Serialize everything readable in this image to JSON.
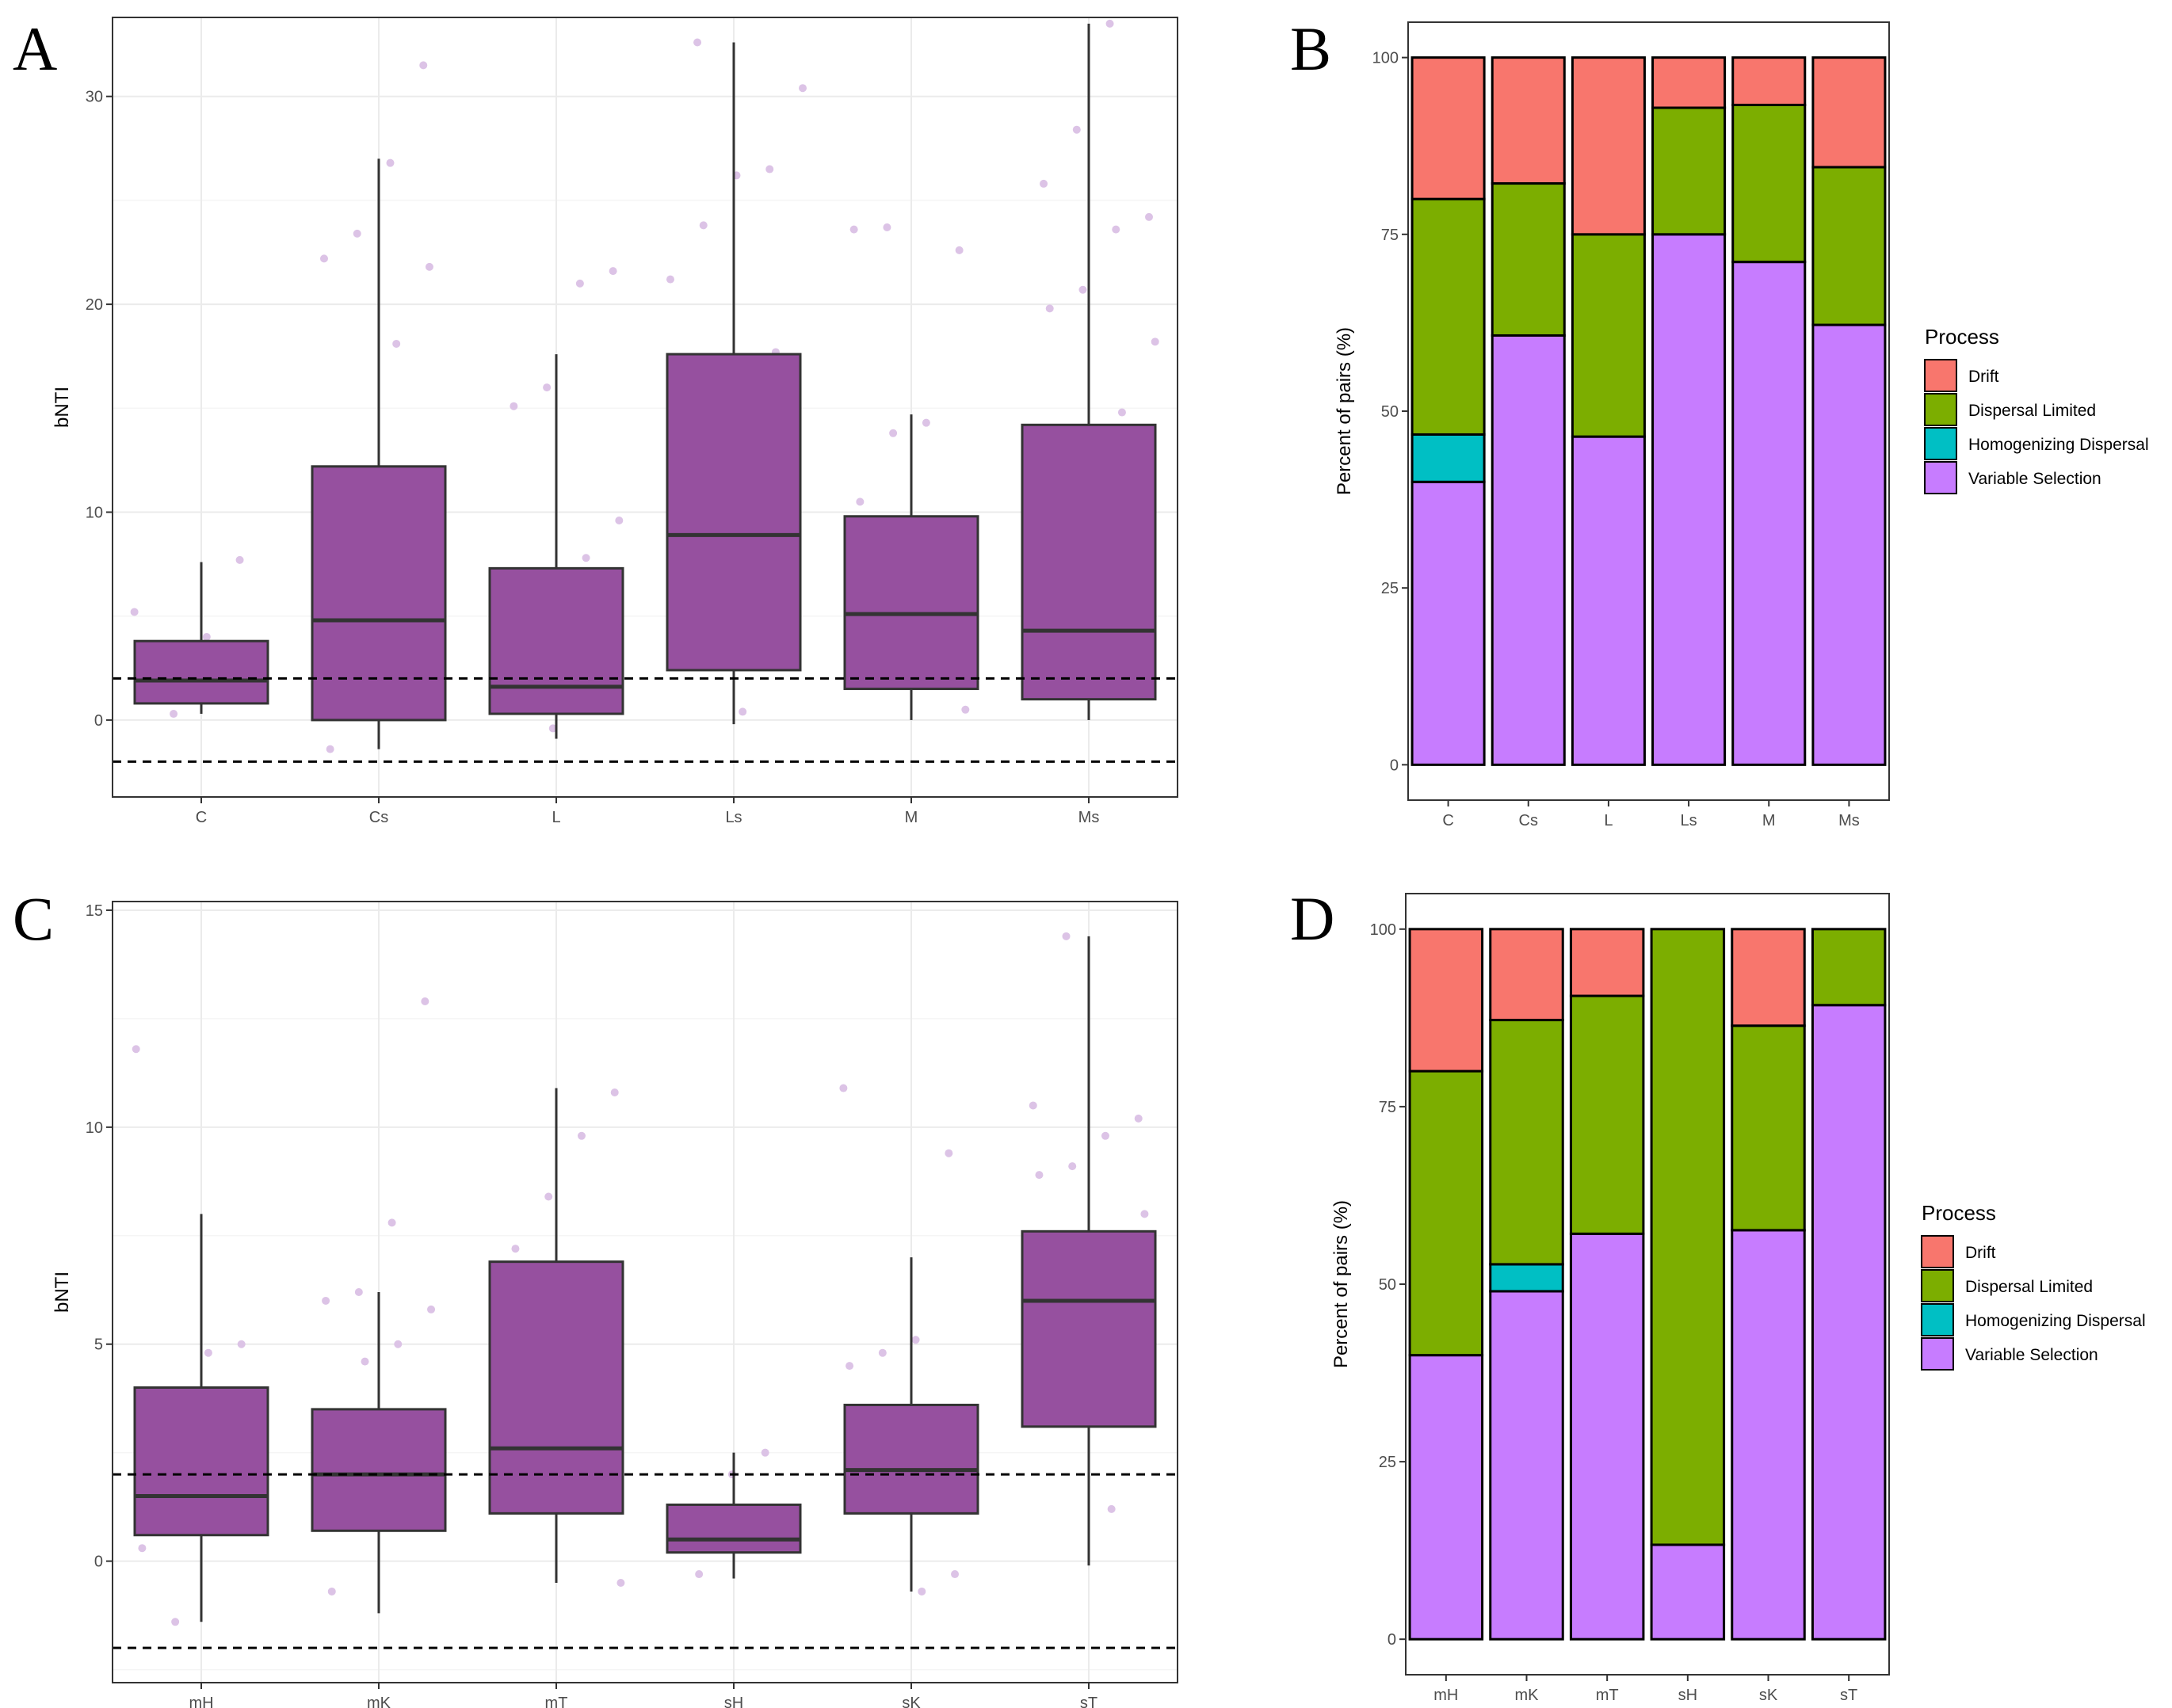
{
  "chart_data": [
    {
      "panel": "A",
      "type": "boxplot",
      "ylabel": "bNTI",
      "xlabel": "",
      "ylim": [
        -3.7,
        33.8
      ],
      "yticks": [
        0,
        10,
        20,
        30
      ],
      "reference_lines": [
        2,
        -2
      ],
      "categories": [
        "C",
        "Cs",
        "L",
        "Ls",
        "M",
        "Ms"
      ],
      "boxes": [
        {
          "group": "C",
          "whisker_low": 0.3,
          "q1": 0.8,
          "median": 1.9,
          "q3": 3.8,
          "whisker_high": 7.6
        },
        {
          "group": "Cs",
          "whisker_low": -1.4,
          "q1": 0.0,
          "median": 4.8,
          "q3": 12.2,
          "whisker_high": 27.0
        },
        {
          "group": "L",
          "whisker_low": -0.9,
          "q1": 0.3,
          "median": 1.6,
          "q3": 7.3,
          "whisker_high": 17.6
        },
        {
          "group": "Ls",
          "whisker_low": -0.2,
          "q1": 2.4,
          "median": 8.9,
          "q3": 17.6,
          "whisker_high": 32.6
        },
        {
          "group": "M",
          "whisker_low": 0.0,
          "q1": 1.5,
          "median": 5.1,
          "q3": 9.8,
          "whisker_high": 14.7
        },
        {
          "group": "Ms",
          "whisker_low": 0.0,
          "q1": 1.0,
          "median": 4.3,
          "q3": 14.2,
          "whisker_high": 33.5
        }
      ],
      "jitter_points": [
        {
          "group": "C",
          "y": 5.2
        },
        {
          "group": "C",
          "y": 7.7
        },
        {
          "group": "C",
          "y": 4.0
        },
        {
          "group": "C",
          "y": 0.3
        },
        {
          "group": "C",
          "y": 2.1
        },
        {
          "group": "Cs",
          "y": 31.5
        },
        {
          "group": "Cs",
          "y": 26.8
        },
        {
          "group": "Cs",
          "y": 23.4
        },
        {
          "group": "Cs",
          "y": 22.2
        },
        {
          "group": "Cs",
          "y": 21.8
        },
        {
          "group": "Cs",
          "y": 18.1
        },
        {
          "group": "Cs",
          "y": 8.7
        },
        {
          "group": "Cs",
          "y": -1.4
        },
        {
          "group": "L",
          "y": 21.6
        },
        {
          "group": "L",
          "y": 21.0
        },
        {
          "group": "L",
          "y": 16.0
        },
        {
          "group": "L",
          "y": 15.1
        },
        {
          "group": "L",
          "y": 9.6
        },
        {
          "group": "L",
          "y": 7.8
        },
        {
          "group": "L",
          "y": -0.4
        },
        {
          "group": "Ls",
          "y": 32.6
        },
        {
          "group": "Ls",
          "y": 30.4
        },
        {
          "group": "Ls",
          "y": 26.5
        },
        {
          "group": "Ls",
          "y": 26.2
        },
        {
          "group": "Ls",
          "y": 23.8
        },
        {
          "group": "Ls",
          "y": 21.2
        },
        {
          "group": "Ls",
          "y": 17.7
        },
        {
          "group": "Ls",
          "y": 0.4
        },
        {
          "group": "M",
          "y": 23.7
        },
        {
          "group": "M",
          "y": 23.6
        },
        {
          "group": "M",
          "y": 22.6
        },
        {
          "group": "M",
          "y": 14.3
        },
        {
          "group": "M",
          "y": 13.8
        },
        {
          "group": "M",
          "y": 10.5
        },
        {
          "group": "M",
          "y": 0.5
        },
        {
          "group": "Ms",
          "y": 33.5
        },
        {
          "group": "Ms",
          "y": 28.4
        },
        {
          "group": "Ms",
          "y": 25.8
        },
        {
          "group": "Ms",
          "y": 24.2
        },
        {
          "group": "Ms",
          "y": 23.6
        },
        {
          "group": "Ms",
          "y": 20.7
        },
        {
          "group": "Ms",
          "y": 19.8
        },
        {
          "group": "Ms",
          "y": 18.2
        },
        {
          "group": "Ms",
          "y": 14.8
        }
      ]
    },
    {
      "panel": "B",
      "type": "stacked_bar",
      "ylabel": "Percent of pairs (%)",
      "xlabel": "",
      "ylim": [
        -5,
        105
      ],
      "yticks": [
        0,
        25,
        50,
        75,
        100
      ],
      "categories": [
        "C",
        "Cs",
        "L",
        "Ls",
        "M",
        "Ms"
      ],
      "legend_title": "Process",
      "series": [
        {
          "name": "Variable Selection",
          "color": "#c77cff",
          "values": [
            40.0,
            60.7,
            46.4,
            75.0,
            71.1,
            62.2
          ]
        },
        {
          "name": "Homogenizing Dispersal",
          "color": "#00bfc4",
          "values": [
            6.7,
            0.0,
            0.0,
            0.0,
            0.0,
            0.0
          ]
        },
        {
          "name": "Dispersal Limited",
          "color": "#7cae00",
          "values": [
            33.3,
            21.5,
            28.6,
            17.9,
            22.2,
            22.3
          ]
        },
        {
          "name": "Drift",
          "color": "#f8766d",
          "values": [
            20.0,
            17.8,
            25.0,
            7.1,
            6.7,
            15.5
          ]
        }
      ]
    },
    {
      "panel": "C",
      "type": "boxplot",
      "ylabel": "bNTI",
      "xlabel": "",
      "ylim": [
        -2.8,
        15.2
      ],
      "yticks": [
        0,
        5,
        10,
        15
      ],
      "reference_lines": [
        2,
        -2
      ],
      "categories": [
        "mH",
        "mK",
        "mT",
        "sH",
        "sK",
        "sT"
      ],
      "boxes": [
        {
          "group": "mH",
          "whisker_low": -1.4,
          "q1": 0.6,
          "median": 1.5,
          "q3": 4.0,
          "whisker_high": 8.0
        },
        {
          "group": "mK",
          "whisker_low": -1.2,
          "q1": 0.7,
          "median": 2.0,
          "q3": 3.5,
          "whisker_high": 6.2
        },
        {
          "group": "mT",
          "whisker_low": -0.5,
          "q1": 1.1,
          "median": 2.6,
          "q3": 6.9,
          "whisker_high": 10.9
        },
        {
          "group": "sH",
          "whisker_low": -0.4,
          "q1": 0.2,
          "median": 0.5,
          "q3": 1.3,
          "whisker_high": 2.5
        },
        {
          "group": "sK",
          "whisker_low": -0.7,
          "q1": 1.1,
          "median": 2.1,
          "q3": 3.6,
          "whisker_high": 7.0
        },
        {
          "group": "sT",
          "whisker_low": -0.1,
          "q1": 3.1,
          "median": 6.0,
          "q3": 7.6,
          "whisker_high": 14.4
        }
      ],
      "jitter_points": [
        {
          "group": "mH",
          "y": 11.8
        },
        {
          "group": "mH",
          "y": 5.0
        },
        {
          "group": "mH",
          "y": 4.8
        },
        {
          "group": "mH",
          "y": -1.4
        },
        {
          "group": "mH",
          "y": 0.3
        },
        {
          "group": "mK",
          "y": 12.9
        },
        {
          "group": "mK",
          "y": 7.8
        },
        {
          "group": "mK",
          "y": 6.2
        },
        {
          "group": "mK",
          "y": 6.0
        },
        {
          "group": "mK",
          "y": 5.8
        },
        {
          "group": "mK",
          "y": 5.0
        },
        {
          "group": "mK",
          "y": 4.6
        },
        {
          "group": "mK",
          "y": -0.7
        },
        {
          "group": "mT",
          "y": 10.8
        },
        {
          "group": "mT",
          "y": 9.8
        },
        {
          "group": "mT",
          "y": 8.4
        },
        {
          "group": "mT",
          "y": 7.2
        },
        {
          "group": "mT",
          "y": -0.5
        },
        {
          "group": "sH",
          "y": 2.5
        },
        {
          "group": "sH",
          "y": 2.0
        },
        {
          "group": "sH",
          "y": -0.3
        },
        {
          "group": "sK",
          "y": 10.9
        },
        {
          "group": "sK",
          "y": 9.4
        },
        {
          "group": "sK",
          "y": 5.1
        },
        {
          "group": "sK",
          "y": 4.8
        },
        {
          "group": "sK",
          "y": 4.5
        },
        {
          "group": "sK",
          "y": -0.3
        },
        {
          "group": "sK",
          "y": -0.7
        },
        {
          "group": "sT",
          "y": 14.4
        },
        {
          "group": "sT",
          "y": 10.5
        },
        {
          "group": "sT",
          "y": 10.2
        },
        {
          "group": "sT",
          "y": 9.8
        },
        {
          "group": "sT",
          "y": 9.1
        },
        {
          "group": "sT",
          "y": 8.9
        },
        {
          "group": "sT",
          "y": 8.0
        },
        {
          "group": "sT",
          "y": 1.2
        }
      ]
    },
    {
      "panel": "D",
      "type": "stacked_bar",
      "ylabel": "Percent of pairs (%)",
      "xlabel": "",
      "ylim": [
        -5,
        105
      ],
      "yticks": [
        0,
        25,
        50,
        75,
        100
      ],
      "categories": [
        "mH",
        "mK",
        "mT",
        "sH",
        "sK",
        "sT"
      ],
      "legend_title": "Process",
      "series": [
        {
          "name": "Variable Selection",
          "color": "#c77cff",
          "values": [
            40.0,
            49.0,
            57.1,
            13.3,
            57.6,
            89.3
          ]
        },
        {
          "name": "Homogenizing Dispersal",
          "color": "#00bfc4",
          "values": [
            0.0,
            3.8,
            0.0,
            0.0,
            0.0,
            0.0
          ]
        },
        {
          "name": "Dispersal Limited",
          "color": "#7cae00",
          "values": [
            40.0,
            34.4,
            33.5,
            86.7,
            28.8,
            10.7
          ]
        },
        {
          "name": "Drift",
          "color": "#f8766d",
          "values": [
            20.0,
            12.8,
            9.4,
            0.0,
            13.6,
            0.0
          ]
        }
      ]
    }
  ],
  "legend_order": [
    "Drift",
    "Dispersal Limited",
    "Homogenizing Dispersal",
    "Variable Selection"
  ],
  "colors": {
    "box_fill": "#96509f",
    "box_line": "#333333",
    "jitter": "#dcc3e6",
    "panel_border": "#333333",
    "grid_major": "#ebebeb",
    "grid_minor": "#f5f5f5"
  }
}
